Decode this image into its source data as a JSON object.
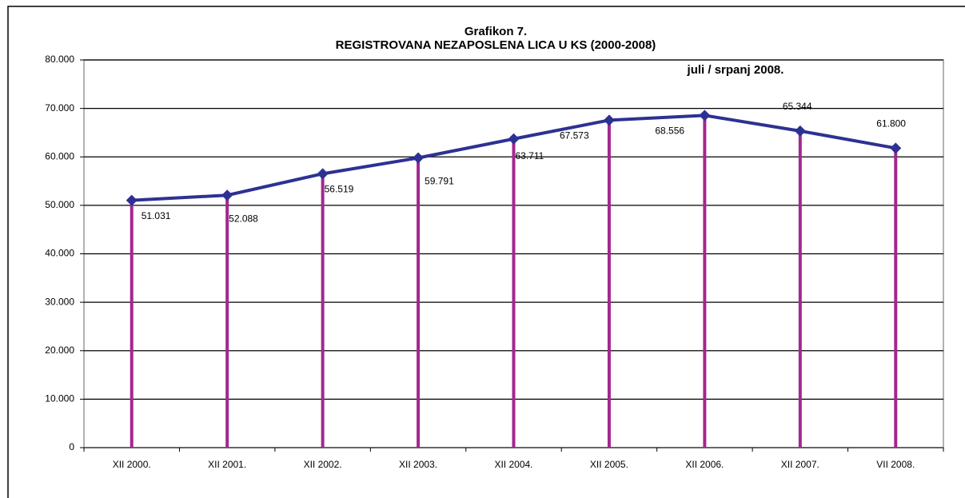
{
  "chart_data": {
    "type": "line",
    "title": "Grafikon 7.",
    "subtitle": "REGISTROVANA NEZAPOSLENA LICA U KS  (2000-2008)",
    "annotation": "juli / srpanj  2008.",
    "categories": [
      "XII 2000.",
      "XII 2001.",
      "XII 2002.",
      "XII 2003.",
      "XII 2004.",
      "XII  2005.",
      "XII 2006.",
      "XII 2007.",
      "VII 2008."
    ],
    "values": [
      51031,
      52088,
      56519,
      59791,
      63711,
      67573,
      68556,
      65344,
      61800
    ],
    "value_labels": [
      "51.031",
      "52.088",
      "56.519",
      "59.791",
      "63.711",
      "67.573",
      "68.556",
      "65.344",
      "61.800"
    ],
    "color": "#2e3192",
    "drop_line_color": "#a3278f",
    "ylim": [
      0,
      80000
    ],
    "yticks": [
      0,
      {
        "value": 10000,
        "label": "10.000"
      },
      {
        "value": 20000,
        "label": "20.000"
      },
      {
        "value": 30000,
        "label": "30.000"
      },
      {
        "value": 40000,
        "label": "40.000"
      },
      {
        "value": 50000,
        "label": "50.000"
      },
      {
        "value": 60000,
        "label": "60.000"
      },
      {
        "value": 70000,
        "label": "70.000"
      },
      {
        "value": 80000,
        "label": "80.000"
      }
    ],
    "grid": true
  }
}
